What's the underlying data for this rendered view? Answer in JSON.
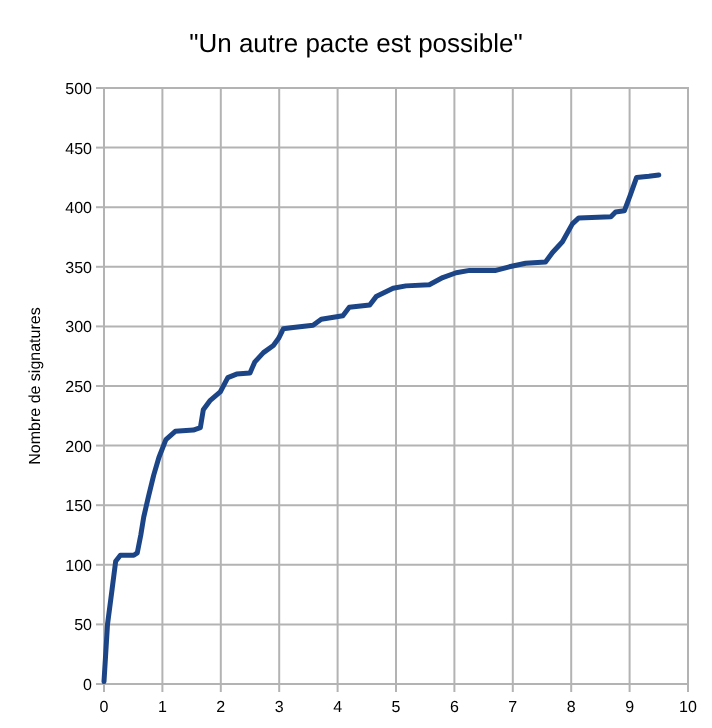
{
  "chart_data": {
    "type": "line",
    "title": "\"Un autre pacte est possible\"",
    "ylabel": "Nombre de signatures",
    "x": [
      0,
      0.06,
      0.14,
      0.2,
      0.28,
      0.51,
      0.57,
      0.63,
      0.68,
      0.76,
      0.85,
      0.94,
      1.06,
      1.22,
      1.53,
      1.65,
      1.7,
      1.82,
      1.99,
      2.12,
      2.27,
      2.5,
      2.58,
      2.73,
      2.9,
      2.99,
      3.07,
      3.24,
      3.58,
      3.72,
      4.09,
      4.2,
      4.55,
      4.66,
      4.95,
      5.17,
      5.57,
      5.8,
      6.03,
      6.26,
      6.71,
      6.94,
      7.22,
      7.56,
      7.68,
      7.85,
      8.02,
      8.13,
      8.68,
      8.76,
      8.91,
      9.01,
      9.12,
      9.33,
      9.5
    ],
    "series": [
      {
        "color": "#1c4587",
        "values": [
          2,
          50,
          80,
          103,
          108,
          108,
          110,
          125,
          140,
          157,
          175,
          190,
          205,
          212,
          213,
          215,
          230,
          238,
          245,
          257,
          260,
          261,
          270,
          278,
          284,
          290,
          298,
          299,
          301,
          306,
          309,
          316,
          318,
          325,
          332,
          334,
          335,
          341,
          345,
          347,
          347,
          350,
          353,
          354,
          362,
          371,
          386,
          391,
          392,
          396,
          397,
          410,
          425,
          426,
          427
        ]
      }
    ],
    "xlim": [
      0,
      10
    ],
    "xticks": [
      0,
      1,
      2,
      3,
      4,
      5,
      6,
      7,
      8,
      9,
      10
    ],
    "ylim": [
      0,
      500
    ],
    "yticks": [
      0,
      50,
      100,
      150,
      200,
      250,
      300,
      350,
      400,
      450,
      500
    ],
    "grid": true,
    "marker": "none",
    "line_style": "solid"
  }
}
